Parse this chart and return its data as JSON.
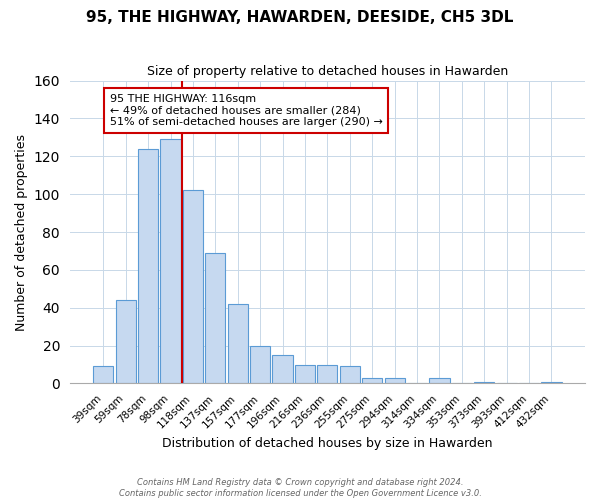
{
  "title": "95, THE HIGHWAY, HAWARDEN, DEESIDE, CH5 3DL",
  "subtitle": "Size of property relative to detached houses in Hawarden",
  "xlabel": "Distribution of detached houses by size in Hawarden",
  "ylabel": "Number of detached properties",
  "bar_labels": [
    "39sqm",
    "59sqm",
    "78sqm",
    "98sqm",
    "118sqm",
    "137sqm",
    "157sqm",
    "177sqm",
    "196sqm",
    "216sqm",
    "236sqm",
    "255sqm",
    "275sqm",
    "294sqm",
    "314sqm",
    "334sqm",
    "353sqm",
    "373sqm",
    "393sqm",
    "412sqm",
    "432sqm"
  ],
  "bar_values": [
    9,
    44,
    124,
    129,
    102,
    69,
    42,
    20,
    15,
    10,
    10,
    9,
    3,
    3,
    0,
    3,
    0,
    1,
    0,
    0,
    1
  ],
  "bar_color": "#c6d9f0",
  "bar_edge_color": "#5b9bd5",
  "vline_color": "#cc0000",
  "annotation_title": "95 THE HIGHWAY: 116sqm",
  "annotation_line1": "← 49% of detached houses are smaller (284)",
  "annotation_line2": "51% of semi-detached houses are larger (290) →",
  "annotation_box_edge": "#cc0000",
  "ylim": [
    0,
    160
  ],
  "yticks": [
    0,
    20,
    40,
    60,
    80,
    100,
    120,
    140,
    160
  ],
  "footer_line1": "Contains HM Land Registry data © Crown copyright and database right 2024.",
  "footer_line2": "Contains public sector information licensed under the Open Government Licence v3.0."
}
